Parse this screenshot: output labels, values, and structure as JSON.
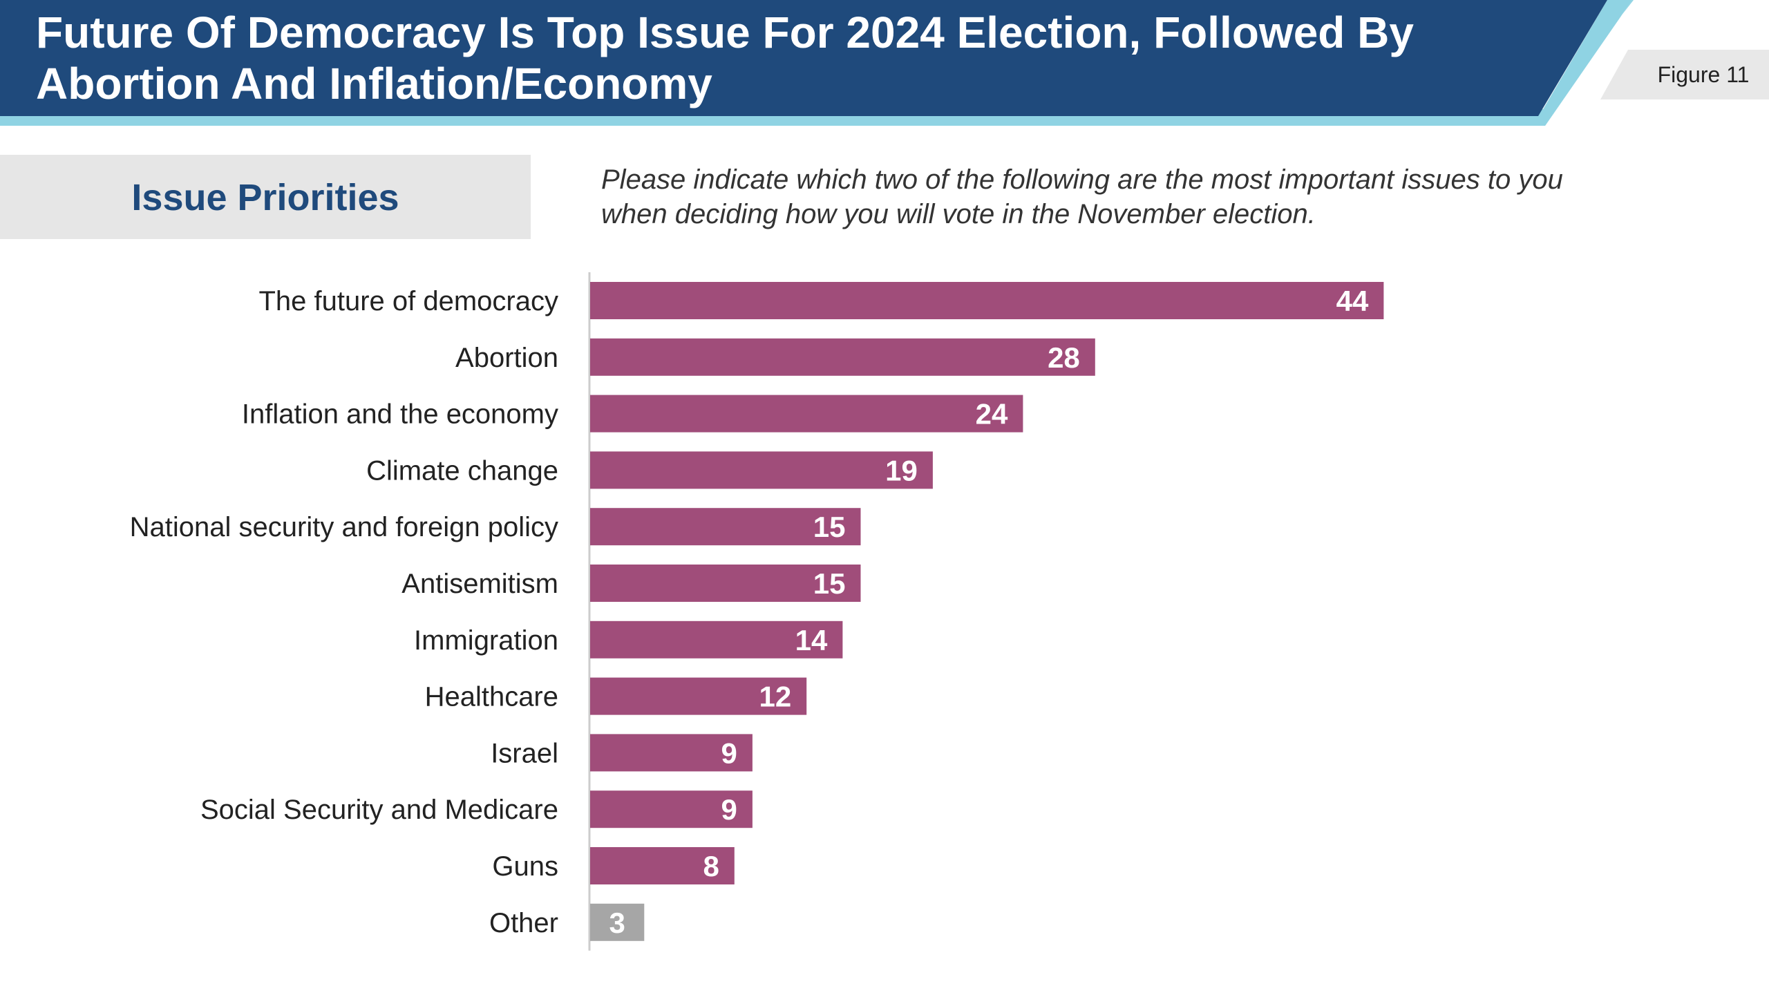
{
  "header": {
    "title_line1": "Future Of Democracy Is Top Issue For 2024 Election, Followed By",
    "title_line2": "Abortion And Inflation/Economy",
    "figure_label": "Figure 11"
  },
  "subtitle": "Issue Priorities",
  "question_line1": "Please indicate which two of the following are the most important issues to you",
  "question_line2": "when deciding how you will vote in the November election.",
  "colors": {
    "header_bg": "#1f4a7c",
    "header_accent": "#8fd3e3",
    "bar": "#a04d7a",
    "bar_other": "#a6a6a6",
    "axis": "#cccccc"
  },
  "chart_data": {
    "type": "bar",
    "orientation": "horizontal",
    "categories": [
      "The future of democracy",
      "Abortion",
      "Inflation and the economy",
      "Climate change",
      "National security and foreign policy",
      "Antisemitism",
      "Immigration",
      "Healthcare",
      "Israel",
      "Social Security and Medicare",
      "Guns",
      "Other"
    ],
    "values": [
      44,
      28,
      24,
      19,
      15,
      15,
      14,
      12,
      9,
      9,
      8,
      3
    ],
    "xlim": [
      0,
      65
    ],
    "grid": false,
    "legend": "none"
  }
}
